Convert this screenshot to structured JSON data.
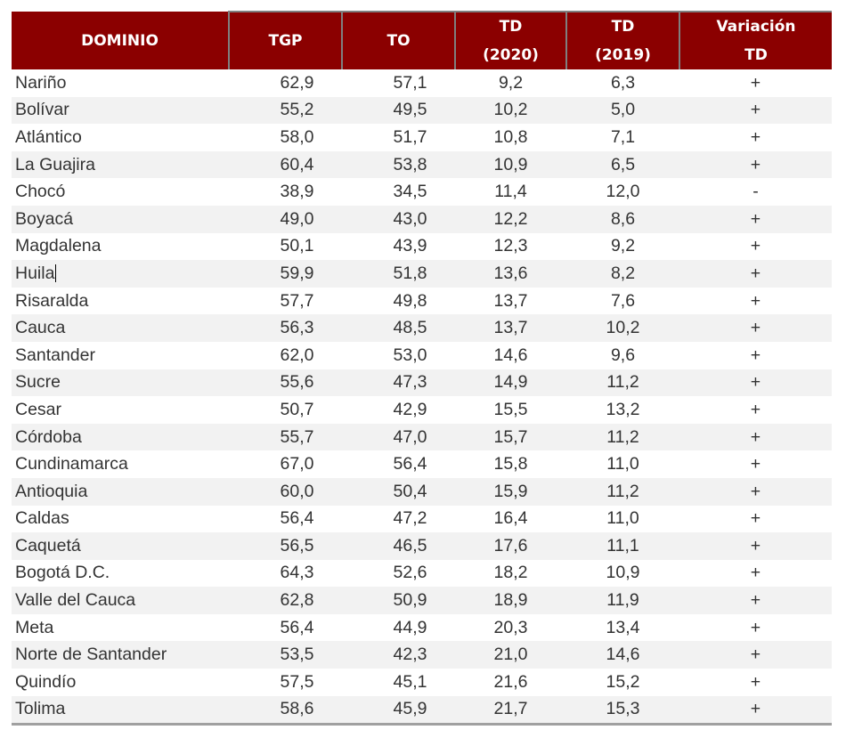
{
  "colors": {
    "header_bg": "#8b0000",
    "header_text": "#ffffff",
    "header_border": "#7f7f7f",
    "row_alt": "#f2f2f2",
    "text": "#333333"
  },
  "table": {
    "headers": [
      {
        "line1": "DOMINIO",
        "line2": ""
      },
      {
        "line1": "TGP",
        "line2": ""
      },
      {
        "line1": "TO",
        "line2": ""
      },
      {
        "line1": "TD",
        "line2": "(2020)"
      },
      {
        "line1": "TD",
        "line2": "(2019)"
      },
      {
        "line1": "Variación",
        "line2": "TD"
      }
    ],
    "rows": [
      {
        "dominio": "Nariño",
        "tgp": "62,9",
        "to": "57,1",
        "td2020": "9,2",
        "td2019": "6,3",
        "variacion": "+"
      },
      {
        "dominio": "Bolívar",
        "tgp": "55,2",
        "to": "49,5",
        "td2020": "10,2",
        "td2019": "5,0",
        "variacion": "+"
      },
      {
        "dominio": "Atlántico",
        "tgp": "58,0",
        "to": "51,7",
        "td2020": "10,8",
        "td2019": "7,1",
        "variacion": "+"
      },
      {
        "dominio": "La Guajira",
        "tgp": "60,4",
        "to": "53,8",
        "td2020": "10,9",
        "td2019": "6,5",
        "variacion": "+"
      },
      {
        "dominio": "Chocó",
        "tgp": "38,9",
        "to": "34,5",
        "td2020": "11,4",
        "td2019": "12,0",
        "variacion": "-"
      },
      {
        "dominio": "Boyacá",
        "tgp": "49,0",
        "to": "43,0",
        "td2020": "12,2",
        "td2019": "8,6",
        "variacion": "+"
      },
      {
        "dominio": "Magdalena",
        "tgp": "50,1",
        "to": "43,9",
        "td2020": "12,3",
        "td2019": "9,2",
        "variacion": "+"
      },
      {
        "dominio": "Huila",
        "tgp": "59,9",
        "to": "51,8",
        "td2020": "13,6",
        "td2019": "8,2",
        "variacion": "+"
      },
      {
        "dominio": "Risaralda",
        "tgp": "57,7",
        "to": "49,8",
        "td2020": "13,7",
        "td2019": "7,6",
        "variacion": "+"
      },
      {
        "dominio": "Cauca",
        "tgp": "56,3",
        "to": "48,5",
        "td2020": "13,7",
        "td2019": "10,2",
        "variacion": "+"
      },
      {
        "dominio": "Santander",
        "tgp": "62,0",
        "to": "53,0",
        "td2020": "14,6",
        "td2019": "9,6",
        "variacion": "+"
      },
      {
        "dominio": "Sucre",
        "tgp": "55,6",
        "to": "47,3",
        "td2020": "14,9",
        "td2019": "11,2",
        "variacion": "+"
      },
      {
        "dominio": "Cesar",
        "tgp": "50,7",
        "to": "42,9",
        "td2020": "15,5",
        "td2019": "13,2",
        "variacion": "+"
      },
      {
        "dominio": "Córdoba",
        "tgp": "55,7",
        "to": "47,0",
        "td2020": "15,7",
        "td2019": "11,2",
        "variacion": "+"
      },
      {
        "dominio": "Cundinamarca",
        "tgp": "67,0",
        "to": "56,4",
        "td2020": "15,8",
        "td2019": "11,0",
        "variacion": "+"
      },
      {
        "dominio": "Antioquia",
        "tgp": "60,0",
        "to": "50,4",
        "td2020": "15,9",
        "td2019": "11,2",
        "variacion": "+"
      },
      {
        "dominio": "Caldas",
        "tgp": "56,4",
        "to": "47,2",
        "td2020": "16,4",
        "td2019": "11,0",
        "variacion": "+"
      },
      {
        "dominio": "Caquetá",
        "tgp": "56,5",
        "to": "46,5",
        "td2020": "17,6",
        "td2019": "11,1",
        "variacion": "+"
      },
      {
        "dominio": "Bogotá D.C.",
        "tgp": "64,3",
        "to": "52,6",
        "td2020": "18,2",
        "td2019": "10,9",
        "variacion": "+"
      },
      {
        "dominio": "Valle del Cauca",
        "tgp": "62,8",
        "to": "50,9",
        "td2020": "18,9",
        "td2019": "11,9",
        "variacion": "+"
      },
      {
        "dominio": "Meta",
        "tgp": "56,4",
        "to": "44,9",
        "td2020": "20,3",
        "td2019": "13,4",
        "variacion": "+"
      },
      {
        "dominio": "Norte de Santander",
        "tgp": "53,5",
        "to": "42,3",
        "td2020": "21,0",
        "td2019": "14,6",
        "variacion": "+"
      },
      {
        "dominio": "Quindío",
        "tgp": "57,5",
        "to": "45,1",
        "td2020": "21,6",
        "td2019": "15,2",
        "variacion": "+"
      },
      {
        "dominio": "Tolima",
        "tgp": "58,6",
        "to": "45,9",
        "td2020": "21,7",
        "td2019": "15,3",
        "variacion": "+"
      }
    ]
  }
}
